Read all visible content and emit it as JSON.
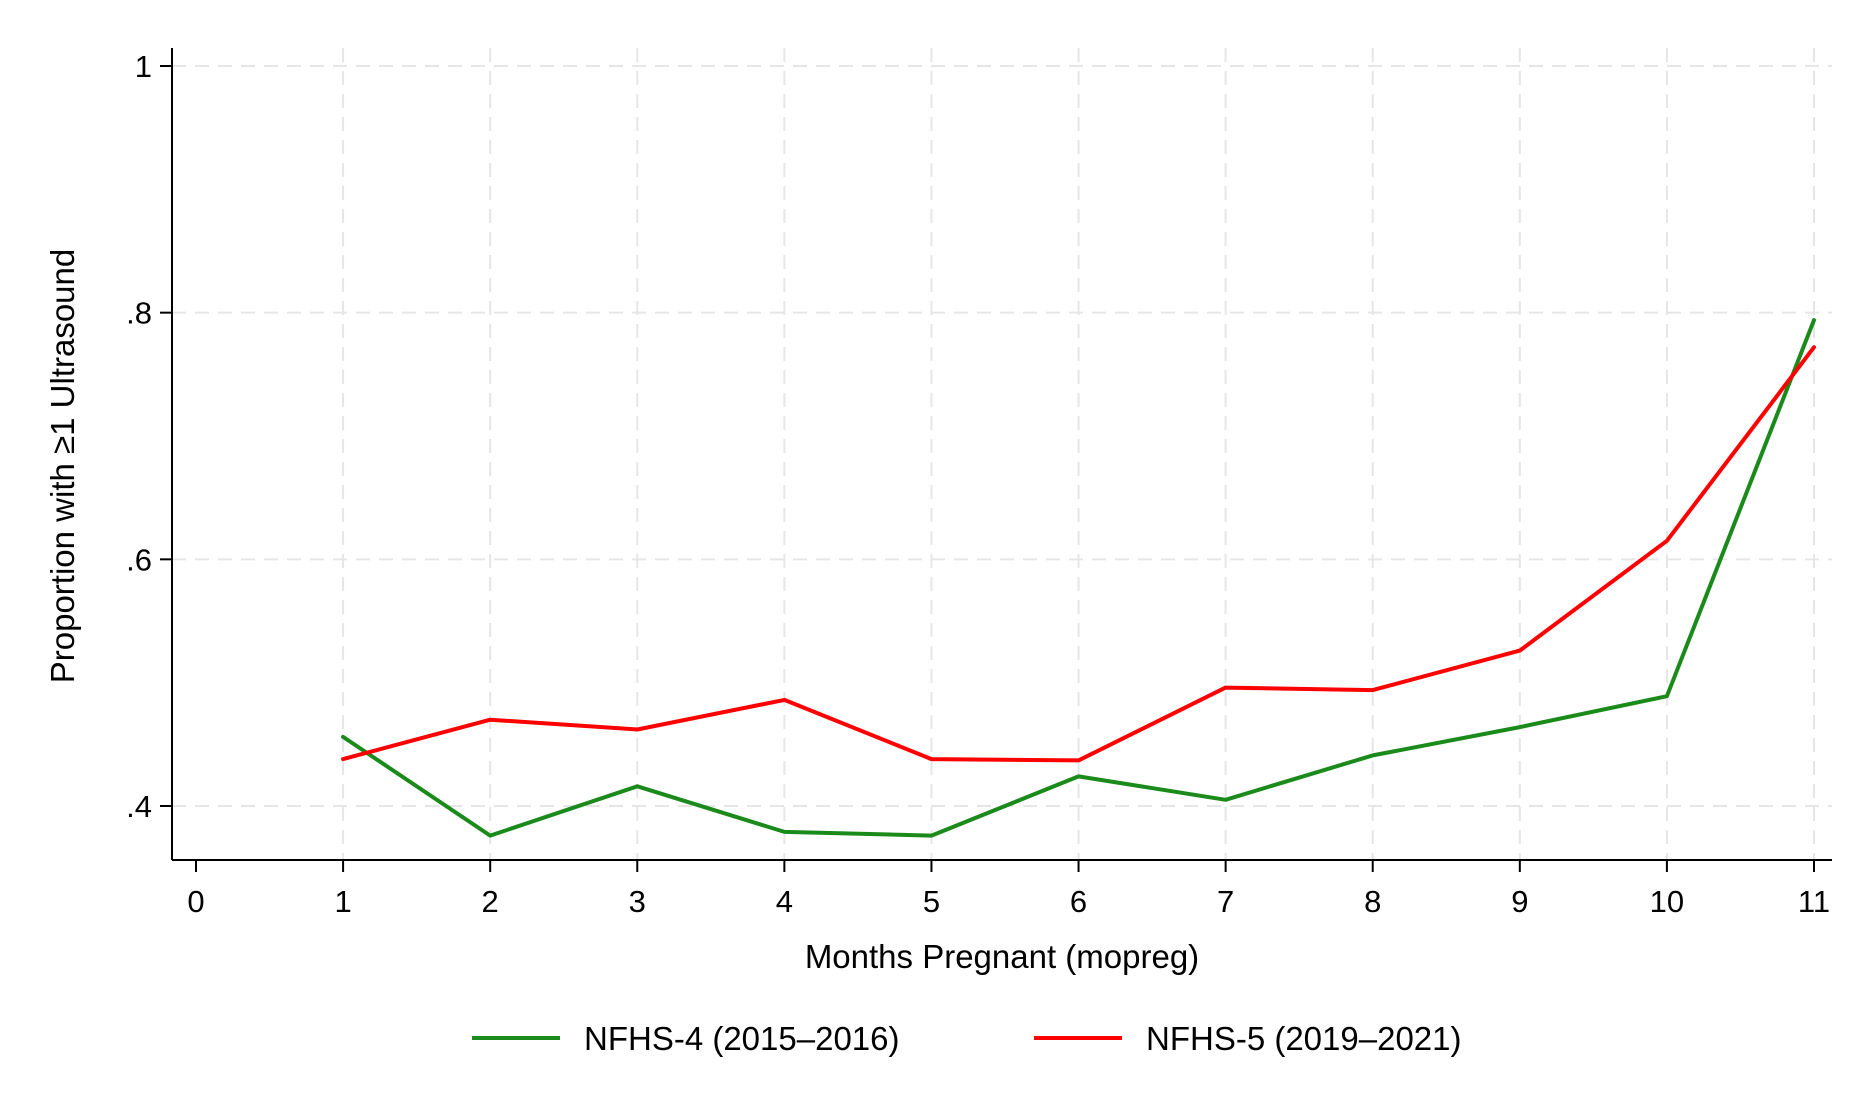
{
  "chart_data": {
    "type": "line",
    "title": "",
    "xlabel": "Months Pregnant (mopreg)",
    "ylabel": "Proportion with ≥1 Ultrasound",
    "xlim": [
      0,
      11
    ],
    "ylim": [
      0.355,
      1.02
    ],
    "x_ticks": [
      0,
      1,
      2,
      3,
      4,
      5,
      6,
      7,
      8,
      9,
      10,
      11
    ],
    "x_tick_labels": [
      "0",
      "1",
      "2",
      "3",
      "4",
      "5",
      "6",
      "7",
      "8",
      "9",
      "10",
      "11"
    ],
    "y_ticks": [
      0.4,
      0.6,
      0.8,
      1.0
    ],
    "y_tick_labels": [
      ".4",
      ".6",
      ".8",
      "1"
    ],
    "grid": true,
    "legend_position": "bottom",
    "series": [
      {
        "name": "NFHS-4 (2015–2016)",
        "color": "#1a8a1a",
        "x": [
          1,
          2,
          3,
          4,
          5,
          6,
          7,
          8,
          9,
          10,
          11
        ],
        "values": [
          0.456,
          0.376,
          0.416,
          0.379,
          0.376,
          0.424,
          0.405,
          0.441,
          0.464,
          0.489,
          0.794
        ]
      },
      {
        "name": "NFHS-5 (2019–2021)",
        "color": "#ff0000",
        "x": [
          1,
          2,
          3,
          4,
          5,
          6,
          7,
          8,
          9,
          10,
          11
        ],
        "values": [
          0.438,
          0.47,
          0.462,
          0.486,
          0.438,
          0.437,
          0.496,
          0.494,
          0.526,
          0.615,
          0.772
        ]
      }
    ]
  }
}
